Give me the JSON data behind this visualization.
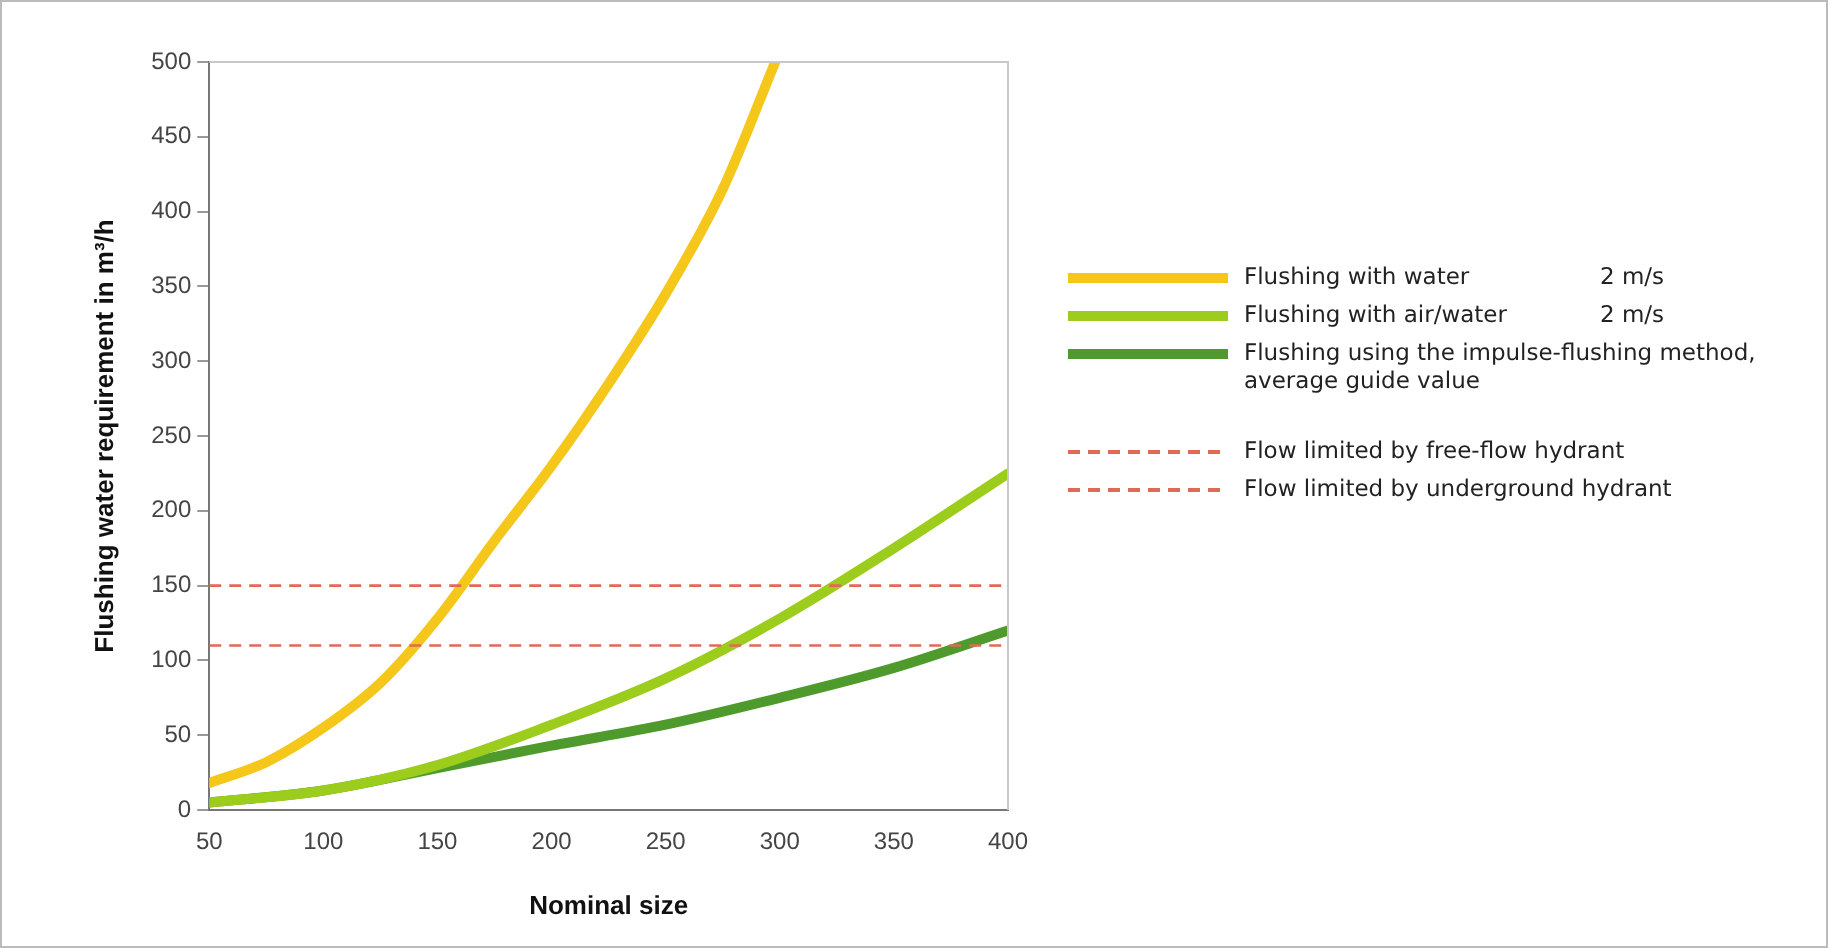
{
  "chart_data": {
    "type": "line",
    "xlabel": "Nominal size",
    "ylabel": "Flushing water requirement in m³/h",
    "xlim": [
      50,
      400
    ],
    "xticks": [
      50,
      100,
      150,
      200,
      250,
      300,
      350,
      400
    ],
    "ylim": [
      0,
      500
    ],
    "yticks": [
      0,
      50,
      100,
      150,
      200,
      250,
      300,
      350,
      400,
      450,
      500
    ],
    "grid": false,
    "legend": "right",
    "marker": "none",
    "line_style": "solid",
    "series": [
      {
        "name": "Flushing with water",
        "color": "#f5c71a",
        "x": [
          50,
          75,
          100,
          125,
          150,
          175,
          200,
          225,
          250,
          275,
          298
        ],
        "values": [
          18,
          32,
          55,
          85,
          128,
          180,
          230,
          285,
          345,
          415,
          500
        ]
      },
      {
        "name": "Flushing with air/water",
        "color": "#9ccc1c",
        "x": [
          50,
          100,
          150,
          200,
          250,
          300,
          350,
          400
        ],
        "values": [
          5,
          13,
          30,
          57,
          88,
          128,
          175,
          225
        ]
      },
      {
        "name": "Flushing using the impulse-flushing method, average guide value",
        "color": "#4e9a2c",
        "x": [
          50,
          100,
          150,
          200,
          250,
          300,
          350,
          400
        ],
        "values": [
          5,
          13,
          28,
          43,
          57,
          75,
          95,
          120
        ]
      }
    ],
    "ref_lines": [
      {
        "axis": "y",
        "value": 150,
        "label": "Flow limited by free-flow hydrant",
        "color": "#e06a55",
        "line_style": "dashed"
      },
      {
        "axis": "y",
        "value": 110,
        "label": "Flow limited by underground hydrant",
        "color": "#e06a55",
        "line_style": "dashed"
      }
    ],
    "annotations": [
      "2 m/s",
      "2 m/s"
    ]
  }
}
